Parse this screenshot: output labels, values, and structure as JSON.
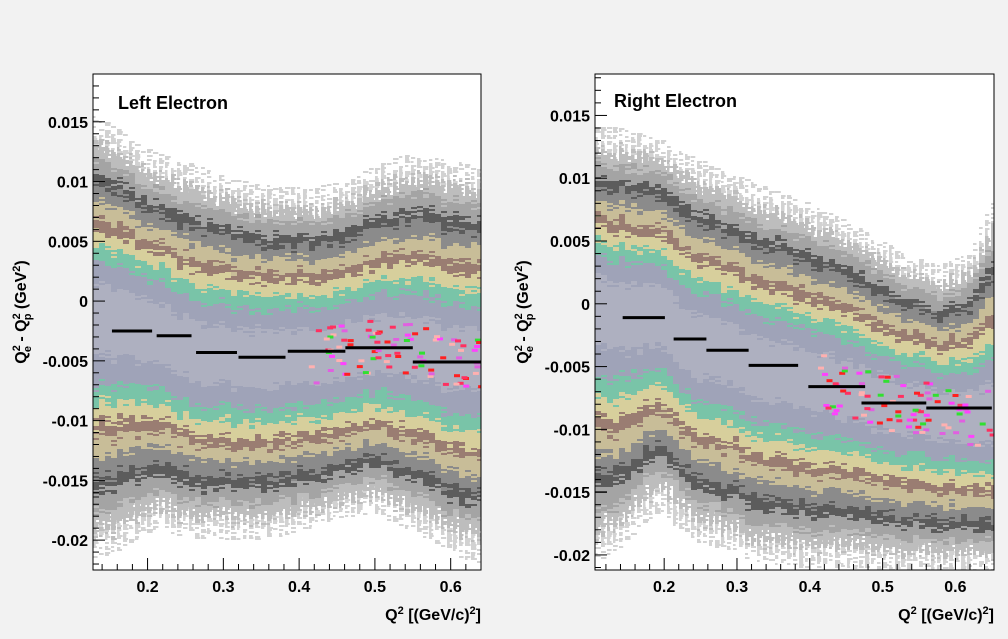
{
  "chart_data": [
    {
      "type": "heatmap",
      "title": "Left Electron",
      "xlabel": "Q^2 [(GeV/c)^2]",
      "ylabel": "Q_e^2 - Q_p^2 (GeV^2)",
      "xlim": [
        0.128,
        0.64
      ],
      "ylim": [
        -0.0225,
        0.019
      ],
      "x_ticks": [
        0.2,
        0.3,
        0.4,
        0.5,
        0.6
      ],
      "x_tick_labels": [
        "0.2",
        "0.3",
        "0.4",
        "0.5",
        "0.6"
      ],
      "y_ticks": [
        0.015,
        0.01,
        0.005,
        0,
        -0.005,
        -0.01,
        -0.015,
        -0.02
      ],
      "y_tick_labels": [
        "0.015",
        "0.01",
        "0.005",
        "0",
        "-0.005",
        "-0.01",
        "-0.015",
        "-0.02"
      ],
      "profile": [
        {
          "x": [
            0.153,
            0.206
          ],
          "y": -0.0025
        },
        {
          "x": [
            0.212,
            0.258
          ],
          "y": -0.0029
        },
        {
          "x": [
            0.264,
            0.318
          ],
          "y": -0.0043
        },
        {
          "x": [
            0.32,
            0.382
          ],
          "y": -0.0047
        },
        {
          "x": [
            0.385,
            0.461
          ],
          "y": -0.0042
        },
        {
          "x": [
            0.461,
            0.55
          ],
          "y": -0.0039
        },
        {
          "x": [
            0.55,
            0.64
          ],
          "y": -0.0051
        }
      ],
      "band": {
        "x": [
          0.13,
          0.16,
          0.19,
          0.21,
          0.23,
          0.26,
          0.3,
          0.34,
          0.38,
          0.42,
          0.46,
          0.5,
          0.54,
          0.58,
          0.62,
          0.64
        ],
        "center": [
          -0.001,
          -0.0015,
          -0.002,
          -0.0025,
          -0.003,
          -0.004,
          -0.0045,
          -0.0048,
          -0.0045,
          -0.0045,
          -0.004,
          -0.0037,
          -0.0037,
          -0.0045,
          -0.005,
          -0.005
        ],
        "upper": [
          0.0155,
          0.0145,
          0.013,
          0.0125,
          0.012,
          0.0115,
          0.0105,
          0.0098,
          0.0095,
          0.0095,
          0.01,
          0.0112,
          0.0122,
          0.012,
          0.0115,
          0.011
        ],
        "lower": [
          -0.0215,
          -0.021,
          -0.0198,
          -0.0192,
          -0.0193,
          -0.0198,
          -0.0199,
          -0.0199,
          -0.0196,
          -0.019,
          -0.0181,
          -0.0177,
          -0.0188,
          -0.0202,
          -0.0215,
          -0.0218
        ]
      }
    },
    {
      "type": "heatmap",
      "title": "Right Electron",
      "xlabel": "Q^2 [(GeV/c)^2]",
      "ylabel": "Q_e^2 - Q_p^2 (GeV^2)",
      "xlim": [
        0.105,
        0.653
      ],
      "ylim": [
        -0.0212,
        0.0183
      ],
      "x_ticks": [
        0.2,
        0.3,
        0.4,
        0.5,
        0.6
      ],
      "x_tick_labels": [
        "0.2",
        "0.3",
        "0.4",
        "0.5",
        "0.6"
      ],
      "y_ticks": [
        0.015,
        0.01,
        0.005,
        0,
        -0.005,
        -0.01,
        -0.015,
        -0.02
      ],
      "y_tick_labels": [
        "0.015",
        "0.01",
        "0.005",
        "0",
        "-0.005",
        "-0.01",
        "-0.015",
        "-0.02"
      ],
      "profile": [
        {
          "x": [
            0.143,
            0.201
          ],
          "y": -0.0011
        },
        {
          "x": [
            0.213,
            0.258
          ],
          "y": -0.0028
        },
        {
          "x": [
            0.258,
            0.316
          ],
          "y": -0.0037
        },
        {
          "x": [
            0.316,
            0.384
          ],
          "y": -0.0049
        },
        {
          "x": [
            0.398,
            0.476
          ],
          "y": -0.0066
        },
        {
          "x": [
            0.471,
            0.56
          ],
          "y": -0.0079
        },
        {
          "x": [
            0.56,
            0.65
          ],
          "y": -0.0083
        }
      ],
      "band": {
        "x": [
          0.11,
          0.14,
          0.17,
          0.2,
          0.22,
          0.25,
          0.29,
          0.33,
          0.38,
          0.43,
          0.48,
          0.53,
          0.58,
          0.62,
          0.65
        ],
        "center": [
          0.0,
          -0.0005,
          -0.0008,
          -0.001,
          -0.0025,
          -0.0032,
          -0.0038,
          -0.0048,
          -0.0057,
          -0.0065,
          -0.0074,
          -0.0081,
          -0.0087,
          -0.009,
          -0.009
        ],
        "upper": [
          0.014,
          0.014,
          0.0135,
          0.013,
          0.0122,
          0.0115,
          0.0105,
          0.0095,
          0.0085,
          0.0072,
          0.0058,
          0.004,
          0.003,
          0.004,
          0.008
        ],
        "lower": [
          -0.0205,
          -0.0195,
          -0.0175,
          -0.0165,
          -0.0178,
          -0.019,
          -0.0198,
          -0.0205,
          -0.021,
          -0.021,
          -0.021,
          -0.0212,
          -0.0212,
          -0.0212,
          -0.0212
        ]
      }
    }
  ]
}
